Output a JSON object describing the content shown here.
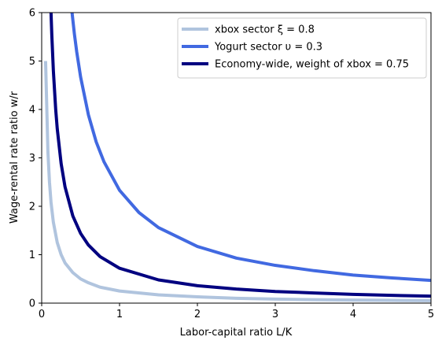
{
  "chart_data": {
    "type": "line",
    "title": "",
    "xlabel": "Labor-capital ratio L/K",
    "ylabel": "Wage-rental rate ratio w/r",
    "xlim": [
      0,
      5
    ],
    "ylim": [
      0,
      6
    ],
    "x_ticks": [
      "0",
      "1",
      "2",
      "3",
      "4",
      "5"
    ],
    "y_ticks": [
      "0",
      "1",
      "2",
      "3",
      "4",
      "5",
      "6"
    ],
    "grid": false,
    "legend_position": "top-right",
    "series": [
      {
        "name": "xbox sector ξ = 0.8",
        "color": "#b0c4de",
        "x": [
          0.05,
          0.08,
          0.1,
          0.12,
          0.15,
          0.2,
          0.25,
          0.3,
          0.4,
          0.5,
          0.6,
          0.75,
          1.0,
          1.5,
          2.0,
          2.5,
          3.0,
          3.5,
          4.0,
          4.5,
          5.0
        ],
        "y": [
          5.0,
          3.13,
          2.5,
          2.08,
          1.67,
          1.25,
          1.0,
          0.83,
          0.63,
          0.5,
          0.42,
          0.33,
          0.25,
          0.17,
          0.13,
          0.1,
          0.083,
          0.071,
          0.063,
          0.056,
          0.05
        ]
      },
      {
        "name": "Yogurt sector υ = 0.3",
        "color": "#4169e1",
        "x": [
          0.39,
          0.42,
          0.45,
          0.5,
          0.6,
          0.7,
          0.8,
          1.0,
          1.25,
          1.5,
          2.0,
          2.5,
          3.0,
          3.5,
          4.0,
          4.5,
          5.0
        ],
        "y": [
          6.0,
          5.56,
          5.19,
          4.67,
          3.89,
          3.33,
          2.92,
          2.33,
          1.87,
          1.56,
          1.17,
          0.93,
          0.78,
          0.67,
          0.58,
          0.52,
          0.47
        ]
      },
      {
        "name": "Economy-wide, weight of xbox = 0.75",
        "color": "#000080",
        "x": [
          0.12,
          0.13,
          0.15,
          0.18,
          0.2,
          0.25,
          0.3,
          0.4,
          0.5,
          0.6,
          0.75,
          1.0,
          1.5,
          2.0,
          2.5,
          3.0,
          3.5,
          4.0,
          4.5,
          5.0
        ],
        "y": [
          6.0,
          5.54,
          4.8,
          4.0,
          3.6,
          2.88,
          2.4,
          1.8,
          1.44,
          1.2,
          0.96,
          0.72,
          0.48,
          0.36,
          0.29,
          0.24,
          0.21,
          0.18,
          0.16,
          0.144
        ]
      }
    ]
  }
}
